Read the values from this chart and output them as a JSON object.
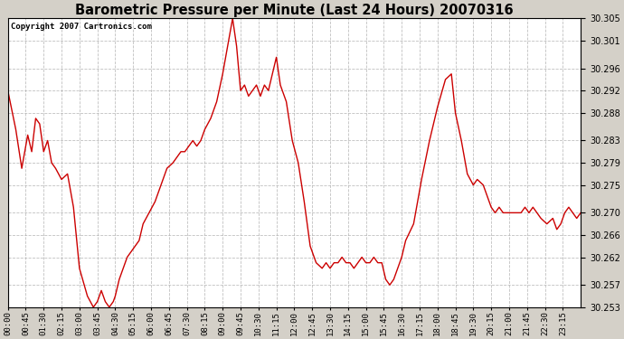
{
  "title": "Barometric Pressure per Minute (Last 24 Hours) 20070316",
  "copyright": "Copyright 2007 Cartronics.com",
  "background_color": "#d4d0c8",
  "plot_bg_color": "#ffffff",
  "line_color": "#cc0000",
  "grid_color": "#b0b0b0",
  "yticks": [
    30.253,
    30.257,
    30.262,
    30.266,
    30.27,
    30.275,
    30.279,
    30.283,
    30.288,
    30.292,
    30.296,
    30.301,
    30.305
  ],
  "ylim": [
    30.253,
    30.305
  ],
  "xtick_labels": [
    "00:00",
    "00:45",
    "01:30",
    "02:15",
    "03:00",
    "03:45",
    "04:30",
    "05:15",
    "06:00",
    "06:45",
    "07:30",
    "08:15",
    "09:00",
    "09:45",
    "10:30",
    "11:15",
    "12:00",
    "12:45",
    "13:30",
    "14:15",
    "15:00",
    "15:45",
    "16:30",
    "17:15",
    "18:00",
    "18:45",
    "19:30",
    "20:15",
    "21:00",
    "21:45",
    "22:30",
    "23:15"
  ],
  "keypoints": [
    [
      0,
      30.292
    ],
    [
      20,
      30.285
    ],
    [
      35,
      30.278
    ],
    [
      50,
      30.284
    ],
    [
      60,
      30.281
    ],
    [
      70,
      30.287
    ],
    [
      80,
      30.286
    ],
    [
      90,
      30.281
    ],
    [
      100,
      30.283
    ],
    [
      110,
      30.279
    ],
    [
      120,
      30.278
    ],
    [
      135,
      30.276
    ],
    [
      150,
      30.277
    ],
    [
      165,
      30.271
    ],
    [
      180,
      30.26
    ],
    [
      200,
      30.255
    ],
    [
      215,
      30.253
    ],
    [
      225,
      30.254
    ],
    [
      235,
      30.256
    ],
    [
      245,
      30.254
    ],
    [
      255,
      30.253
    ],
    [
      265,
      30.254
    ],
    [
      270,
      30.255
    ],
    [
      280,
      30.258
    ],
    [
      290,
      30.26
    ],
    [
      300,
      30.262
    ],
    [
      310,
      30.263
    ],
    [
      320,
      30.264
    ],
    [
      330,
      30.265
    ],
    [
      340,
      30.268
    ],
    [
      355,
      30.27
    ],
    [
      370,
      30.272
    ],
    [
      385,
      30.275
    ],
    [
      400,
      30.278
    ],
    [
      415,
      30.279
    ],
    [
      425,
      30.28
    ],
    [
      435,
      30.281
    ],
    [
      445,
      30.281
    ],
    [
      455,
      30.282
    ],
    [
      465,
      30.283
    ],
    [
      475,
      30.282
    ],
    [
      485,
      30.283
    ],
    [
      495,
      30.285
    ],
    [
      510,
      30.287
    ],
    [
      525,
      30.29
    ],
    [
      540,
      30.295
    ],
    [
      555,
      30.301
    ],
    [
      565,
      30.305
    ],
    [
      575,
      30.3
    ],
    [
      585,
      30.292
    ],
    [
      595,
      30.293
    ],
    [
      605,
      30.291
    ],
    [
      615,
      30.292
    ],
    [
      625,
      30.293
    ],
    [
      635,
      30.291
    ],
    [
      645,
      30.293
    ],
    [
      655,
      30.292
    ],
    [
      665,
      30.295
    ],
    [
      675,
      30.298
    ],
    [
      685,
      30.293
    ],
    [
      700,
      30.29
    ],
    [
      715,
      30.283
    ],
    [
      730,
      30.279
    ],
    [
      745,
      30.272
    ],
    [
      760,
      30.264
    ],
    [
      775,
      30.261
    ],
    [
      790,
      30.26
    ],
    [
      800,
      30.261
    ],
    [
      810,
      30.26
    ],
    [
      820,
      30.261
    ],
    [
      830,
      30.261
    ],
    [
      840,
      30.262
    ],
    [
      850,
      30.261
    ],
    [
      860,
      30.261
    ],
    [
      870,
      30.26
    ],
    [
      880,
      30.261
    ],
    [
      890,
      30.262
    ],
    [
      900,
      30.261
    ],
    [
      910,
      30.261
    ],
    [
      920,
      30.262
    ],
    [
      930,
      30.261
    ],
    [
      940,
      30.261
    ],
    [
      950,
      30.258
    ],
    [
      960,
      30.257
    ],
    [
      970,
      30.258
    ],
    [
      980,
      30.26
    ],
    [
      990,
      30.262
    ],
    [
      1000,
      30.265
    ],
    [
      1020,
      30.268
    ],
    [
      1040,
      30.276
    ],
    [
      1060,
      30.283
    ],
    [
      1080,
      30.289
    ],
    [
      1100,
      30.294
    ],
    [
      1115,
      30.295
    ],
    [
      1125,
      30.288
    ],
    [
      1140,
      30.283
    ],
    [
      1155,
      30.277
    ],
    [
      1170,
      30.275
    ],
    [
      1180,
      30.276
    ],
    [
      1195,
      30.275
    ],
    [
      1205,
      30.273
    ],
    [
      1215,
      30.271
    ],
    [
      1225,
      30.27
    ],
    [
      1235,
      30.271
    ],
    [
      1245,
      30.27
    ],
    [
      1260,
      30.27
    ],
    [
      1275,
      30.27
    ],
    [
      1290,
      30.27
    ],
    [
      1300,
      30.271
    ],
    [
      1310,
      30.27
    ],
    [
      1320,
      30.271
    ],
    [
      1330,
      30.27
    ],
    [
      1340,
      30.269
    ],
    [
      1355,
      30.268
    ],
    [
      1370,
      30.269
    ],
    [
      1380,
      30.267
    ],
    [
      1390,
      30.268
    ],
    [
      1400,
      30.27
    ],
    [
      1410,
      30.271
    ],
    [
      1420,
      30.27
    ],
    [
      1430,
      30.269
    ],
    [
      1440,
      30.27
    ]
  ]
}
